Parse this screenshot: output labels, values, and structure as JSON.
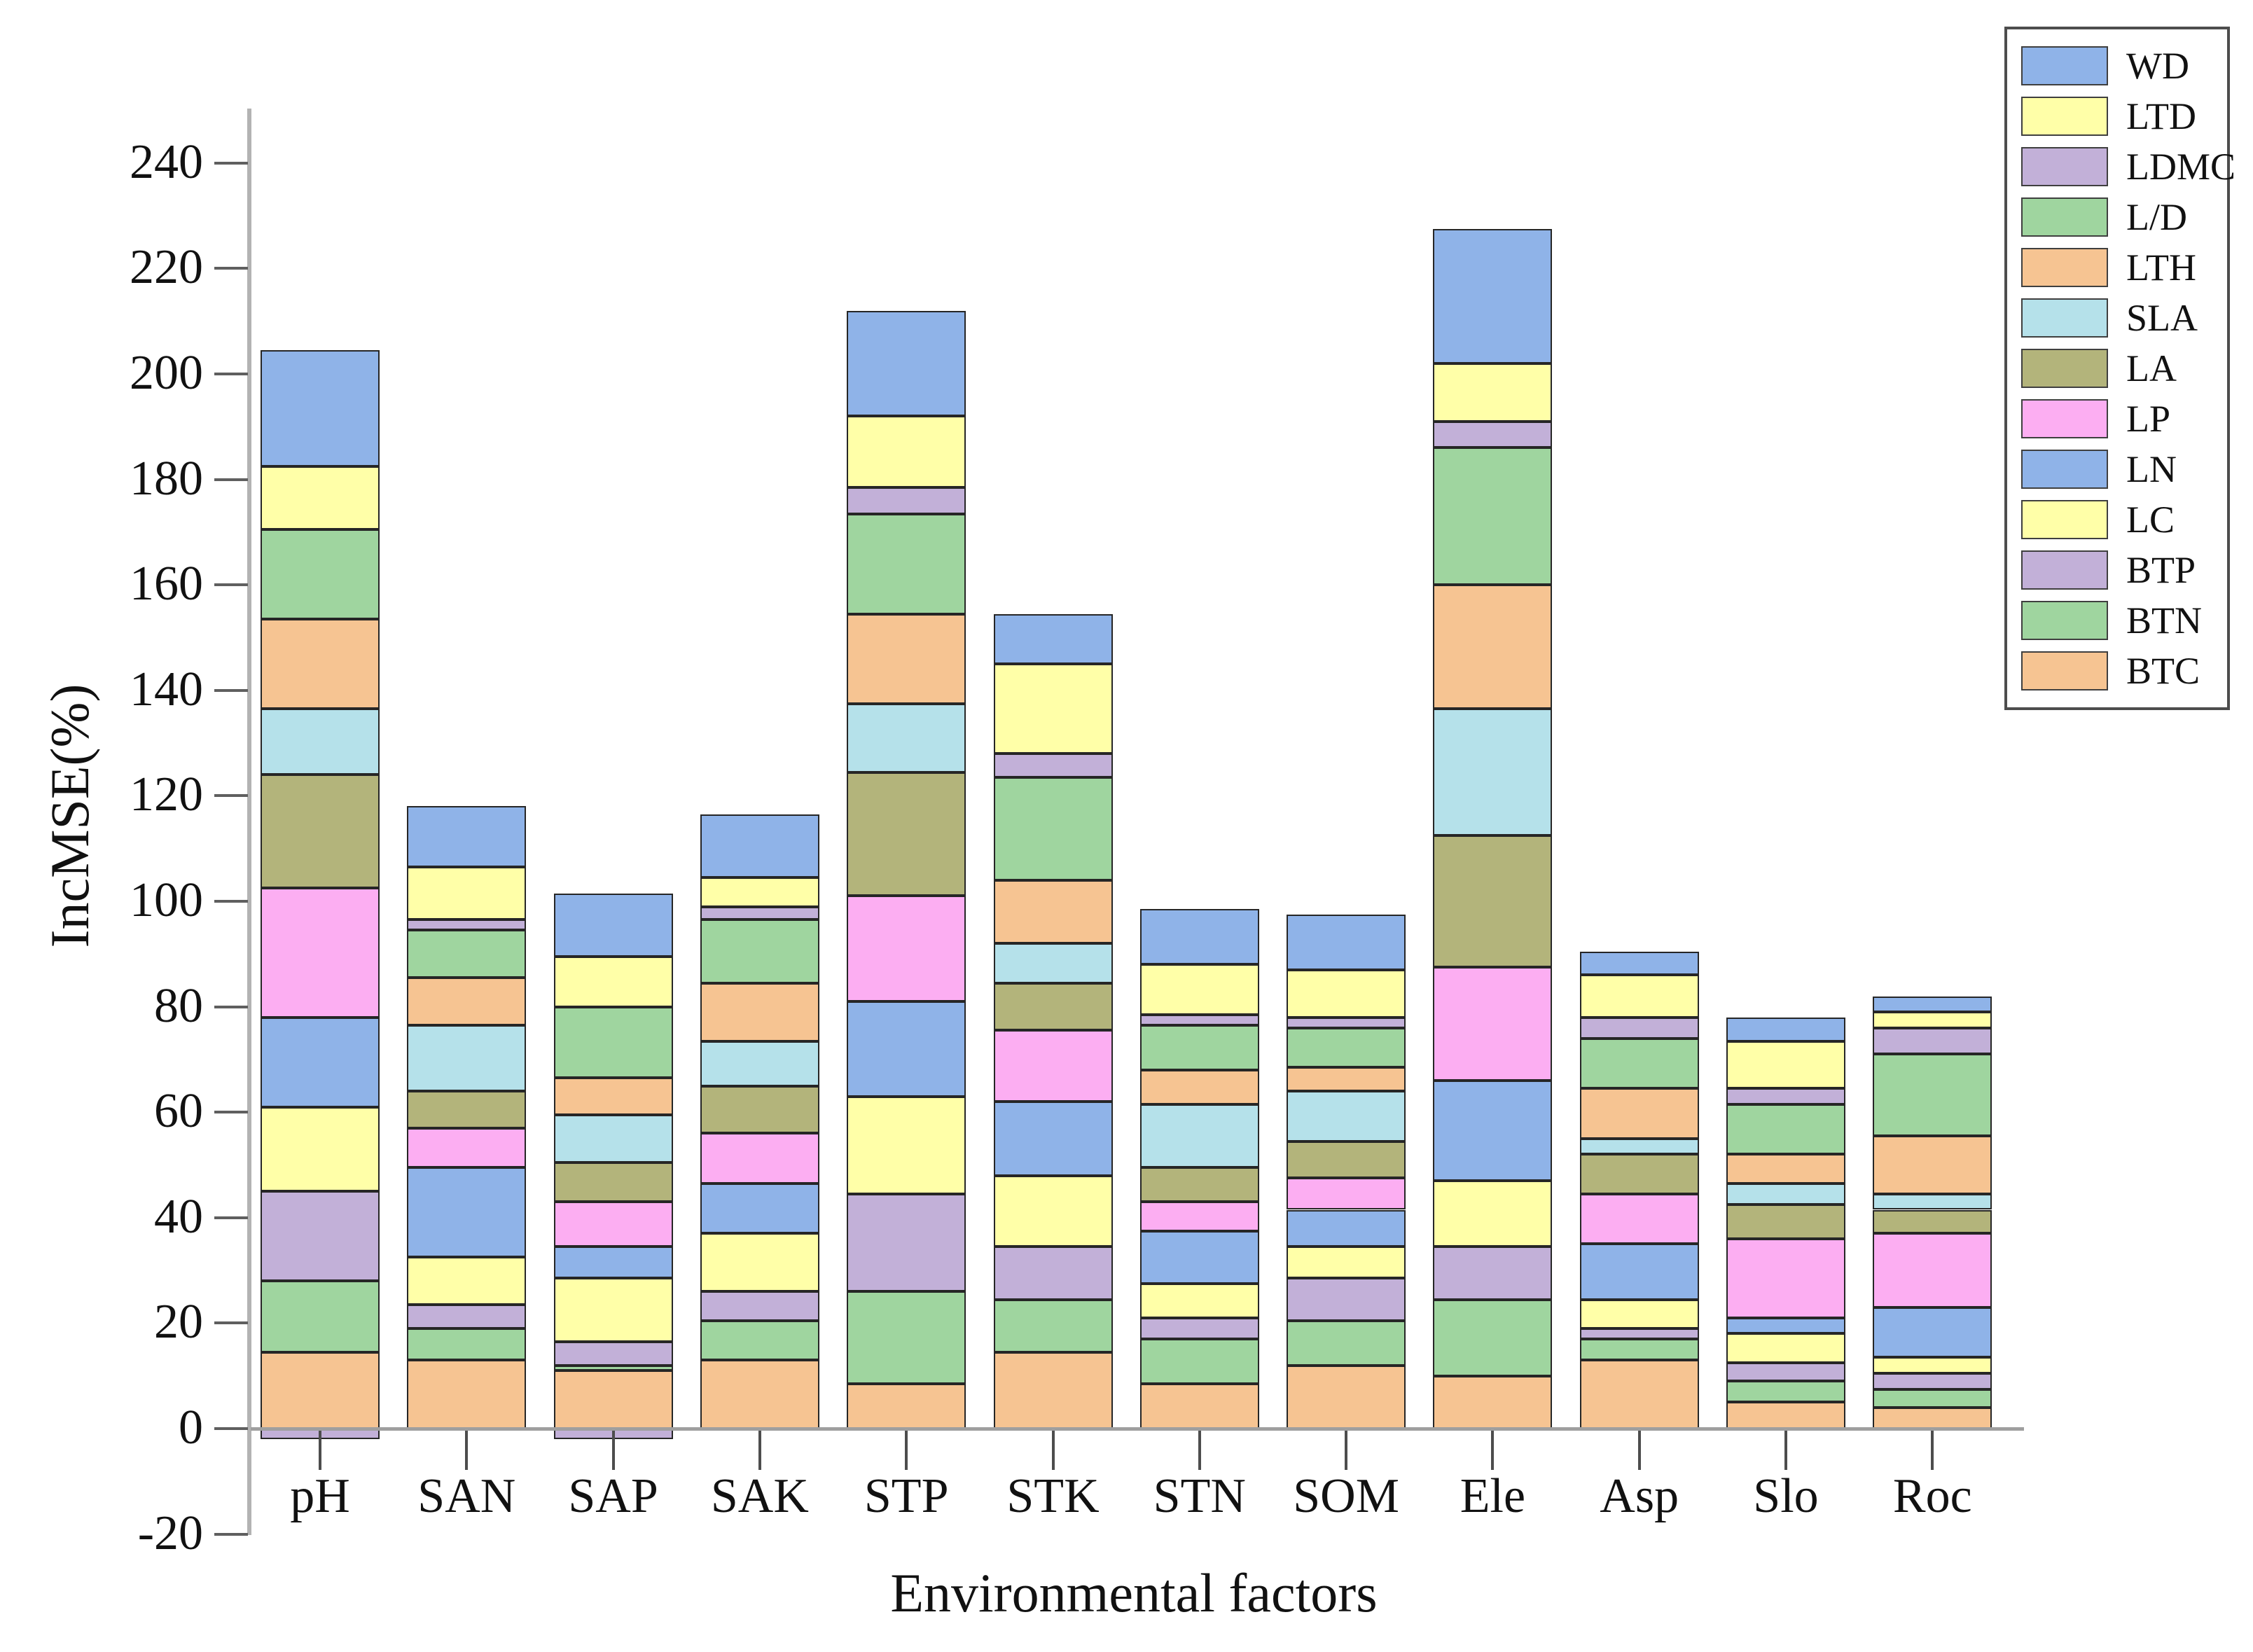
{
  "chart_data": {
    "type": "bar",
    "subtype": "stacked-vertical",
    "xlabel": "Environmental factors",
    "ylabel": "IncMSE(%)",
    "ylim": [
      -20,
      250
    ],
    "ytick_step": 20,
    "yticks": [
      -20,
      0,
      20,
      40,
      60,
      80,
      100,
      120,
      140,
      160,
      180,
      200,
      220,
      240
    ],
    "grid": "off",
    "legend_position": "top-right",
    "categories": [
      "pH",
      "SAN",
      "SAP",
      "SAK",
      "STP",
      "STK",
      "STN",
      "SOM",
      "Ele",
      "Asp",
      "Slo",
      "Roc"
    ],
    "series": [
      {
        "name": "WD",
        "color": "#8fb3e8",
        "values": [
          22,
          11.5,
          12,
          12,
          20,
          9.5,
          10.5,
          10.5,
          25.5,
          4.5,
          4.5,
          3
        ]
      },
      {
        "name": "LTD",
        "color": "#ffffa8",
        "values": [
          12,
          10,
          9.5,
          5.5,
          13.5,
          17,
          9.5,
          9,
          11,
          8,
          9,
          3
        ]
      },
      {
        "name": "LDMC",
        "color": "#c2b0d8",
        "values": [
          -2,
          2,
          -2,
          2.5,
          5,
          4.5,
          2,
          2,
          5,
          4,
          3,
          5
        ]
      },
      {
        "name": "L/D",
        "color": "#9fd59f",
        "values": [
          17,
          9,
          13.5,
          12,
          19,
          19.5,
          8.5,
          7.5,
          26,
          9.5,
          9.5,
          15.5
        ]
      },
      {
        "name": "LTH",
        "color": "#f6c492",
        "values": [
          17,
          9,
          7,
          11,
          17,
          12,
          6.5,
          4.5,
          23.5,
          9.5,
          5.5,
          11
        ]
      },
      {
        "name": "SLA",
        "color": "#b5e1ea",
        "values": [
          12.5,
          12.5,
          9,
          8.5,
          13,
          7.5,
          12,
          9.5,
          24,
          3,
          4,
          3
        ]
      },
      {
        "name": "LA",
        "color": "#b3b47b",
        "values": [
          21.5,
          7,
          7.5,
          9,
          23.5,
          9,
          6.5,
          7,
          25,
          7.5,
          6.5,
          4.5
        ]
      },
      {
        "name": "LP",
        "color": "#fcaef2",
        "values": [
          24.5,
          7.5,
          8.5,
          9.5,
          20,
          13.5,
          5.5,
          6,
          21.5,
          9.5,
          15,
          14
        ]
      },
      {
        "name": "LN",
        "color": "#8fb3e8",
        "values": [
          17,
          17,
          6,
          9.5,
          18,
          14,
          10,
          7,
          19,
          10.5,
          3,
          9.5
        ]
      },
      {
        "name": "LC",
        "color": "#ffffa8",
        "values": [
          16,
          9,
          12,
          11,
          18.5,
          13.5,
          6.5,
          6,
          12.5,
          5.5,
          5.5,
          3
        ]
      },
      {
        "name": "BTP",
        "color": "#c2b0d8",
        "values": [
          17,
          4.5,
          4.5,
          5.5,
          18.5,
          10,
          4,
          8,
          10,
          2,
          3.5,
          3
        ]
      },
      {
        "name": "BTN",
        "color": "#9fd59f",
        "values": [
          13.5,
          6,
          1,
          7.5,
          17.5,
          10,
          8.5,
          8.5,
          14.5,
          4,
          4,
          3.5
        ]
      },
      {
        "name": "BTC",
        "color": "#f6c492",
        "values": [
          14.5,
          13,
          11,
          13,
          8.5,
          14.5,
          8.5,
          12,
          10,
          13,
          5,
          4
        ]
      }
    ],
    "bar_totals": [
      204.5,
      118,
      101.5,
      116.5,
      212,
      154.5,
      98.5,
      97.5,
      227.5,
      90.5,
      78,
      82
    ]
  }
}
